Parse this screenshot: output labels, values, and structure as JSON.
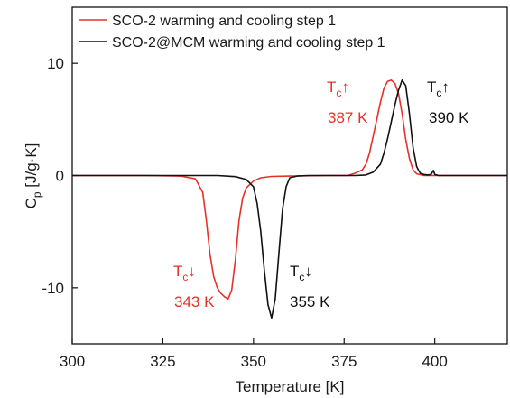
{
  "chart_data": {
    "type": "line",
    "xlabel": "Temperature [K]",
    "ylabel_main": "C",
    "ylabel_sub": "p",
    "ylabel_unit": " [J/g·K]",
    "xlim": [
      300,
      420
    ],
    "ylim": [
      -15,
      15
    ],
    "x_ticks": [
      300,
      325,
      350,
      375,
      400
    ],
    "y_ticks": [
      -10,
      0,
      10
    ],
    "grid": false,
    "legend": {
      "position": "top-left",
      "entries": [
        {
          "label": "SCO-2 warming and cooling step 1",
          "color": "#e8302a"
        },
        {
          "label": "SCO-2@MCM warming and cooling step 1",
          "color": "#111111"
        }
      ]
    },
    "series": [
      {
        "name": "SCO-2 warming and cooling step 1",
        "color": "#e8302a",
        "points": [
          [
            300,
            0
          ],
          [
            320,
            0
          ],
          [
            330,
            -0.05
          ],
          [
            334,
            -0.3
          ],
          [
            336,
            -1.5
          ],
          [
            337,
            -4
          ],
          [
            338,
            -7
          ],
          [
            339,
            -9
          ],
          [
            340,
            -10
          ],
          [
            341,
            -10.5
          ],
          [
            342,
            -10.8
          ],
          [
            343,
            -11
          ],
          [
            344,
            -10.2
          ],
          [
            345,
            -7.5
          ],
          [
            346,
            -4
          ],
          [
            347,
            -2
          ],
          [
            348,
            -1.1
          ],
          [
            350,
            -0.5
          ],
          [
            352,
            -0.2
          ],
          [
            355,
            -0.08
          ],
          [
            360,
            -0.05
          ],
          [
            370,
            0
          ],
          [
            376,
            0
          ],
          [
            378,
            0.2
          ],
          [
            380,
            0.5
          ],
          [
            381,
            1
          ],
          [
            382,
            2
          ],
          [
            383,
            3.5
          ],
          [
            384,
            5
          ],
          [
            385,
            6.5
          ],
          [
            386,
            7.8
          ],
          [
            387,
            8.4
          ],
          [
            388,
            8.5
          ],
          [
            389,
            8.2
          ],
          [
            390,
            7.3
          ],
          [
            391,
            5.5
          ],
          [
            392,
            3.2
          ],
          [
            393,
            1.5
          ],
          [
            394,
            0.5
          ],
          [
            395,
            0.15
          ],
          [
            397,
            0
          ],
          [
            420,
            0
          ]
        ]
      },
      {
        "name": "SCO-2@MCM warming and cooling step 1",
        "color": "#111111",
        "points": [
          [
            300,
            0
          ],
          [
            340,
            0
          ],
          [
            345,
            -0.1
          ],
          [
            348,
            -0.35
          ],
          [
            350,
            -1
          ],
          [
            351,
            -2.5
          ],
          [
            352,
            -5
          ],
          [
            353,
            -8.5
          ],
          [
            354,
            -11.5
          ],
          [
            355,
            -12.7
          ],
          [
            356,
            -11
          ],
          [
            357,
            -7
          ],
          [
            358,
            -3
          ],
          [
            359,
            -1
          ],
          [
            360,
            -0.2
          ],
          [
            362,
            -0.05
          ],
          [
            365,
            0
          ],
          [
            378,
            0
          ],
          [
            381,
            0.05
          ],
          [
            383,
            0.3
          ],
          [
            385,
            1
          ],
          [
            386,
            2
          ],
          [
            387,
            3.3
          ],
          [
            388,
            4.8
          ],
          [
            389,
            6.3
          ],
          [
            390,
            7.6
          ],
          [
            391,
            8.5
          ],
          [
            392,
            8
          ],
          [
            393,
            5.5
          ],
          [
            394,
            2.5
          ],
          [
            395,
            0.8
          ],
          [
            396,
            0.2
          ],
          [
            397,
            0.1
          ],
          [
            398,
            0.05
          ],
          [
            399,
            0.1
          ],
          [
            399.6,
            0.45
          ],
          [
            400,
            0.1
          ],
          [
            401,
            0
          ],
          [
            420,
            0
          ]
        ]
      }
    ],
    "annotations": [
      {
        "main": "T",
        "sub": "c",
        "arrow": "↑",
        "value": "387 K",
        "color": "#e8302a"
      },
      {
        "main": "T",
        "sub": "c",
        "arrow": "↑",
        "value": "390 K",
        "color": "#111111"
      },
      {
        "main": "T",
        "sub": "c",
        "arrow": "↓",
        "value": "343 K",
        "color": "#e8302a"
      },
      {
        "main": "T",
        "sub": "c",
        "arrow": "↓",
        "value": "355 K",
        "color": "#111111"
      }
    ]
  }
}
